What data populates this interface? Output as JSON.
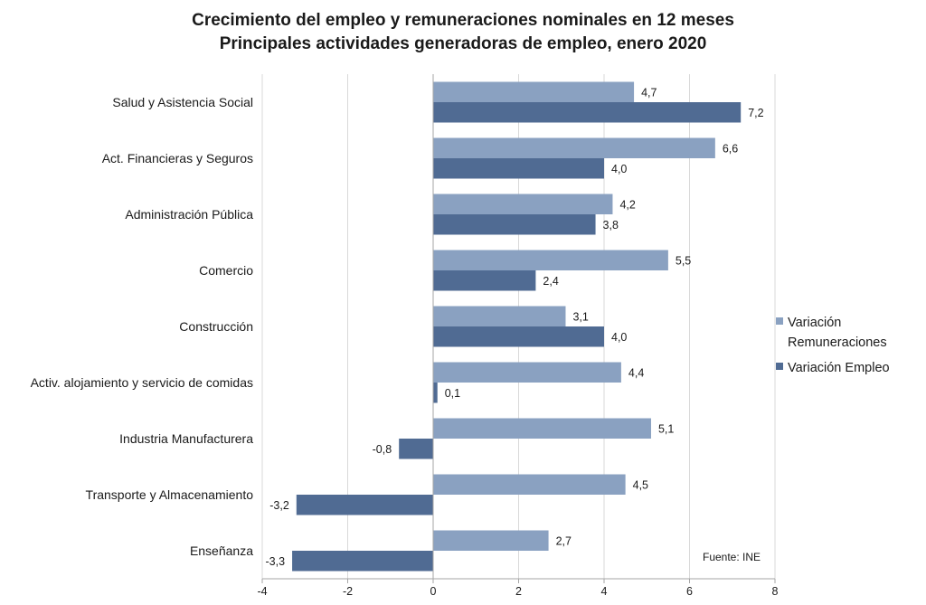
{
  "chart_data": {
    "type": "bar",
    "orientation": "horizontal",
    "title": "Crecimiento del empleo y remuneraciones nominales en 12 meses",
    "subtitle": "Principales actividades generadoras de empleo, enero 2020",
    "categories": [
      "Salud y Asistencia Social",
      "Act. Financieras y Seguros",
      "Administración Pública",
      "Comercio",
      "Construcción",
      "Activ. alojamiento y servicio de comidas",
      "Industria Manufacturera",
      "Transporte y Almacenamiento",
      "Enseñanza"
    ],
    "series": [
      {
        "name": "Variación Remuneraciones",
        "color": "#8aa1c1",
        "values": [
          4.7,
          6.6,
          4.2,
          5.5,
          3.1,
          4.4,
          5.1,
          4.5,
          2.7
        ],
        "labels": [
          "4,7",
          "6,6",
          "4,2",
          "5,5",
          "3,1",
          "4,4",
          "5,1",
          "4,5",
          "2,7"
        ]
      },
      {
        "name": "Variación Empleo",
        "color": "#506b93",
        "values": [
          7.2,
          4.0,
          3.8,
          2.4,
          4.0,
          0.1,
          -0.8,
          -3.2,
          -3.3
        ],
        "labels": [
          "7,2",
          "4,0",
          "3,8",
          "2,4",
          "4,0",
          "0,1",
          "-0,8",
          "-3,2",
          "-3,3"
        ]
      }
    ],
    "xlim": [
      -4,
      8
    ],
    "x_ticks": [
      -4,
      -2,
      0,
      2,
      4,
      6,
      8
    ],
    "x_tick_labels": [
      "-4",
      "-2",
      "0",
      "2",
      "4",
      "6",
      "8"
    ],
    "grid": "vertical",
    "legend_position": "right",
    "legend_labels": [
      [
        "Variación",
        "Remuneraciones"
      ],
      [
        "Variación Empleo"
      ]
    ],
    "source": "Fuente: INE"
  }
}
